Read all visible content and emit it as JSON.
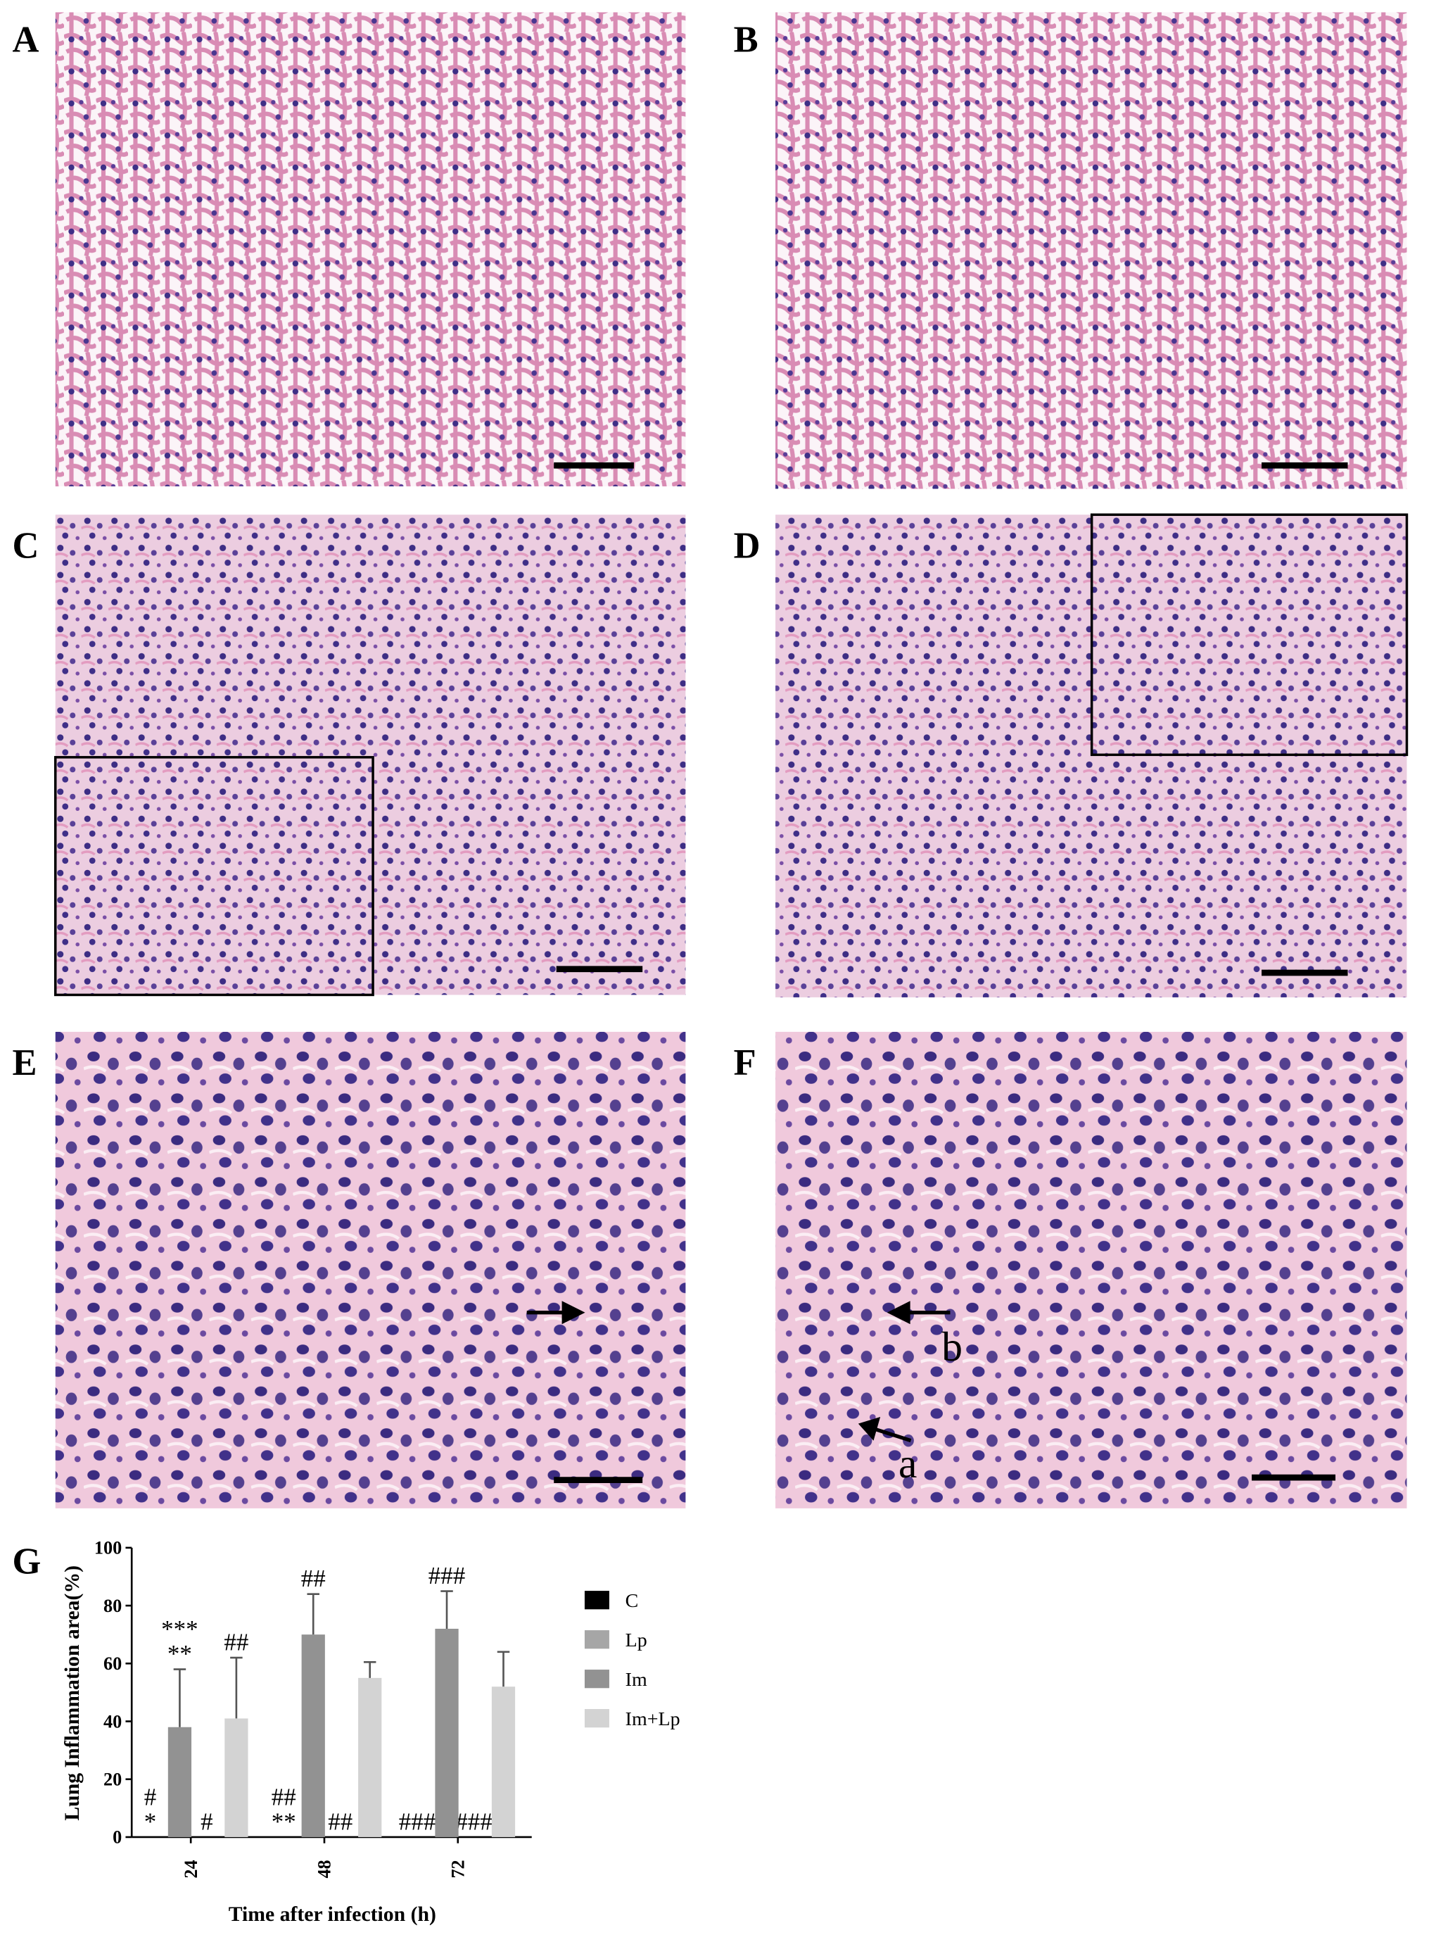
{
  "panels": [
    {
      "label": "A"
    },
    {
      "label": "B"
    },
    {
      "label": "C"
    },
    {
      "label": "D"
    },
    {
      "label": "E"
    },
    {
      "label": "F",
      "annotations": [
        "a",
        "b"
      ]
    }
  ],
  "chart_data": {
    "type": "bar",
    "panel_label": "G",
    "y_label": "Lung Inflammation area(%)",
    "x_label": "Time after infection (h)",
    "categories": [
      "24",
      "48",
      "72"
    ],
    "ylim": [
      0,
      100
    ],
    "yticks": [
      0,
      20,
      40,
      60,
      80,
      100
    ],
    "series": [
      {
        "name": "C",
        "color": "#000000",
        "values": [
          0,
          0,
          0
        ],
        "labels": [
          [
            "#",
            "*"
          ],
          [
            "##",
            "**"
          ],
          [
            "###"
          ]
        ]
      },
      {
        "name": "Lp",
        "color": "#a6a6a6",
        "values": [
          0,
          0,
          0
        ],
        "labels": [
          [
            "#"
          ],
          [
            "##"
          ],
          [
            "###"
          ]
        ]
      },
      {
        "name": "Im",
        "color": "#929292",
        "values": [
          38,
          70,
          72
        ],
        "errors": [
          20,
          14,
          13
        ],
        "labels": [
          [
            "***",
            "**"
          ],
          [
            "##"
          ],
          [
            "###"
          ]
        ]
      },
      {
        "name": "Im+Lp",
        "color": "#d3d3d3",
        "values": [
          41,
          55,
          52
        ],
        "errors": [
          21,
          5.5,
          12
        ],
        "labels": [
          [
            "##"
          ],
          [],
          []
        ]
      }
    ]
  }
}
